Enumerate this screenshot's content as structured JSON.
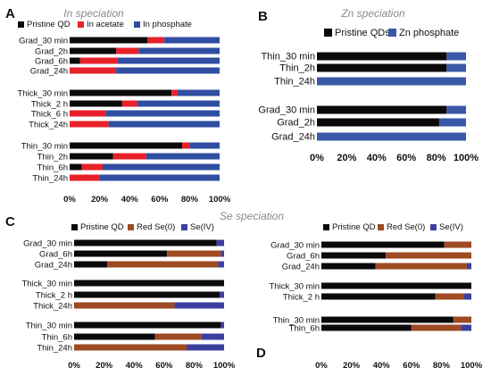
{
  "colors": {
    "pristine": "#0a0a0a",
    "acetate": "#e8202a",
    "phosphate": "#2f4ea2",
    "zn_phosphate": "#3a58a8",
    "red_se": "#9e4a22",
    "se_iv": "#3d3fa0"
  },
  "chart_data": [
    {
      "type": "bar",
      "orientation": "horizontal",
      "stacked": true,
      "panel": "A",
      "title": "In speciation",
      "xlim": [
        0,
        100
      ],
      "x_ticks": [
        "0%",
        "20%",
        "40%",
        "60%",
        "80%",
        "100%"
      ],
      "legend_position": "top",
      "series": [
        {
          "name": "Pristine QD",
          "color": "#0a0a0a"
        },
        {
          "name": "In acetate",
          "color": "#e8202a"
        },
        {
          "name": "In phosphate",
          "color": "#2f4ea2"
        }
      ],
      "groups": [
        {
          "bars": [
            {
              "label": "Grad_30 min",
              "values": [
                52,
                11,
                37
              ]
            },
            {
              "label": "Grad_2h",
              "values": [
                31,
                15,
                54
              ]
            },
            {
              "label": "Grad_6h",
              "values": [
                7,
                25,
                68
              ]
            },
            {
              "label": "Grad_24h",
              "values": [
                0,
                31,
                69
              ]
            }
          ]
        },
        {
          "bars": [
            {
              "label": "Thick_30 min",
              "values": [
                68,
                4,
                28
              ]
            },
            {
              "label": "Thick_2 h",
              "values": [
                35,
                10,
                55
              ]
            },
            {
              "label": "Thick_6 h",
              "values": [
                0,
                24,
                76
              ]
            },
            {
              "label": "Thick_24h",
              "values": [
                0,
                26,
                74
              ]
            }
          ]
        },
        {
          "bars": [
            {
              "label": "Thin_30 min",
              "values": [
                75,
                5,
                20
              ]
            },
            {
              "label": "Thin_2h",
              "values": [
                29,
                22,
                49
              ]
            },
            {
              "label": "Thin_6h",
              "values": [
                8,
                14,
                78
              ]
            },
            {
              "label": "Thin_24h",
              "values": [
                0,
                20,
                80
              ]
            }
          ]
        }
      ]
    },
    {
      "type": "bar",
      "orientation": "horizontal",
      "stacked": true,
      "panel": "B",
      "title": "Zn speciation",
      "xlim": [
        0,
        100
      ],
      "x_ticks": [
        "0%",
        "20%",
        "40%",
        "60%",
        "80%",
        "100%"
      ],
      "legend_position": "top",
      "series": [
        {
          "name": "Pristine QDs",
          "color": "#0a0a0a"
        },
        {
          "name": "Zn phosphate",
          "color": "#3a58a8"
        }
      ],
      "groups": [
        {
          "bars": [
            {
              "label": "Thin_30 min",
              "values": [
                87,
                13
              ]
            },
            {
              "label": "Thin_2h",
              "values": [
                87,
                13
              ]
            },
            {
              "label": "Thin_24h",
              "values": [
                0,
                100
              ]
            }
          ]
        },
        {
          "bars": [
            {
              "label": "Grad_30 min",
              "values": [
                87,
                13
              ]
            },
            {
              "label": "Grad_2h",
              "values": [
                82,
                18
              ]
            },
            {
              "label": "Grad_24h",
              "values": [
                0,
                100
              ]
            }
          ]
        }
      ]
    },
    {
      "type": "bar",
      "orientation": "horizontal",
      "stacked": true,
      "panel": "C",
      "title": "",
      "xlim": [
        0,
        100
      ],
      "x_ticks": [
        "0%",
        "20%",
        "40%",
        "60%",
        "80%",
        "100%"
      ],
      "legend_position": "top",
      "series": [
        {
          "name": "Pristine QD",
          "color": "#0a0a0a"
        },
        {
          "name": "Red Se(0)",
          "color": "#9e4a22"
        },
        {
          "name": "Se(IV)",
          "color": "#3d3fa0"
        }
      ],
      "groups": [
        {
          "bars": [
            {
              "label": "Grad_30 min",
              "values": [
                95,
                0,
                5
              ]
            },
            {
              "label": "Grad_6h",
              "values": [
                62,
                36,
                2
              ]
            },
            {
              "label": "Grad_24h",
              "values": [
                22,
                74,
                4
              ]
            }
          ]
        },
        {
          "bars": [
            {
              "label": "Thick_30 min",
              "values": [
                100,
                0,
                0
              ]
            },
            {
              "label": "Thick_2 h",
              "values": [
                97,
                0,
                3
              ]
            },
            {
              "label": "Thick_24h",
              "values": [
                0,
                67,
                33
              ]
            }
          ]
        },
        {
          "bars": [
            {
              "label": "Thin_30 min",
              "values": [
                98,
                0,
                2
              ]
            },
            {
              "label": "Thin_6h",
              "values": [
                54,
                31,
                15
              ]
            },
            {
              "label": "Thin_24h",
              "values": [
                0,
                75,
                25
              ]
            }
          ]
        }
      ]
    },
    {
      "type": "bar",
      "orientation": "horizontal",
      "stacked": true,
      "panel": "D",
      "title": "",
      "xlim": [
        0,
        100
      ],
      "x_ticks": [
        "0%",
        "20%",
        "40%",
        "60%",
        "80%",
        "100%"
      ],
      "legend_position": "top",
      "series": [
        {
          "name": "Pristine QD",
          "color": "#0a0a0a"
        },
        {
          "name": "Red Se(0)",
          "color": "#9e4a22"
        },
        {
          "name": "Se(IV)",
          "color": "#3d3fa0"
        }
      ],
      "groups": [
        {
          "bars": [
            {
              "label": "Grad_30 min",
              "values": [
                82,
                18,
                0
              ]
            },
            {
              "label": "Grad_6h",
              "values": [
                43,
                57,
                0
              ]
            },
            {
              "label": "Grad_24h",
              "values": [
                36,
                61,
                3
              ]
            }
          ]
        },
        {
          "bars": [
            {
              "label": "Thick_30 min",
              "values": [
                100,
                0,
                0
              ]
            },
            {
              "label": "Thick_2 h",
              "values": [
                76,
                19,
                5
              ]
            }
          ]
        },
        {
          "bars": [
            {
              "label": "Thin_30 min",
              "values": [
                88,
                12,
                0
              ]
            },
            {
              "label": "Thin_6h",
              "values": [
                60,
                33,
                7
              ]
            }
          ]
        }
      ]
    }
  ],
  "section_title": "Se speciation"
}
